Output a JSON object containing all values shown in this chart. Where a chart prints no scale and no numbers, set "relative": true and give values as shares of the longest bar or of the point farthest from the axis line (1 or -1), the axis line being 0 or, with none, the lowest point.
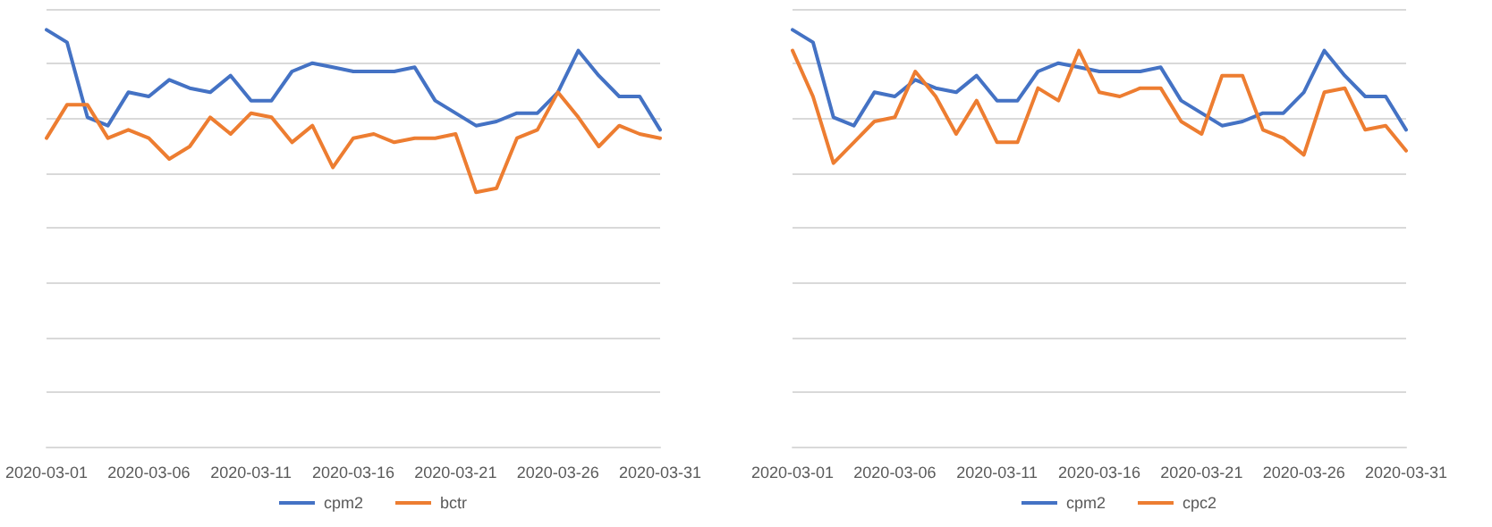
{
  "chart_data": [
    {
      "type": "line",
      "relative": true,
      "grid": "y",
      "legend": "bottom",
      "marker": "none",
      "line_style": "solid",
      "categories": [
        "2020-03-01",
        null,
        null,
        null,
        null,
        "2020-03-06",
        null,
        null,
        null,
        null,
        "2020-03-11",
        null,
        null,
        null,
        null,
        "2020-03-16",
        null,
        null,
        null,
        null,
        "2020-03-21",
        null,
        null,
        null,
        null,
        "2020-03-26",
        null,
        null,
        null,
        null,
        "2020-03-31"
      ],
      "series": [
        {
          "name": "cpm2",
          "color": "#4472c4",
          "values": [
            1.0,
            0.97,
            0.79,
            0.77,
            0.85,
            0.84,
            0.88,
            0.86,
            0.85,
            0.89,
            0.83,
            0.83,
            0.9,
            0.92,
            0.91,
            0.9,
            0.9,
            0.9,
            0.91,
            0.83,
            0.8,
            0.77,
            0.78,
            0.8,
            0.8,
            0.85,
            0.95,
            0.89,
            0.84,
            0.84,
            0.76
          ]
        },
        {
          "name": "bctr",
          "color": "#ed7d31",
          "values": [
            0.74,
            0.82,
            0.82,
            0.74,
            0.76,
            0.74,
            0.69,
            0.72,
            0.79,
            0.75,
            0.8,
            0.79,
            0.73,
            0.77,
            0.67,
            0.74,
            0.75,
            0.73,
            0.74,
            0.74,
            0.75,
            0.61,
            0.62,
            0.74,
            0.76,
            0.85,
            0.79,
            0.72,
            0.77,
            0.75,
            0.74
          ]
        }
      ]
    },
    {
      "type": "line",
      "relative": true,
      "grid": "y",
      "legend": "bottom",
      "marker": "none",
      "line_style": "solid",
      "categories": [
        "2020-03-01",
        null,
        null,
        null,
        null,
        "2020-03-06",
        null,
        null,
        null,
        null,
        "2020-03-11",
        null,
        null,
        null,
        null,
        "2020-03-16",
        null,
        null,
        null,
        null,
        "2020-03-21",
        null,
        null,
        null,
        null,
        "2020-03-26",
        null,
        null,
        null,
        null,
        "2020-03-31"
      ],
      "series": [
        {
          "name": "cpm2",
          "color": "#4472c4",
          "values": [
            1.0,
            0.97,
            0.79,
            0.77,
            0.85,
            0.84,
            0.88,
            0.86,
            0.85,
            0.89,
            0.83,
            0.83,
            0.9,
            0.92,
            0.91,
            0.9,
            0.9,
            0.9,
            0.91,
            0.83,
            0.8,
            0.77,
            0.78,
            0.8,
            0.8,
            0.85,
            0.95,
            0.89,
            0.84,
            0.84,
            0.76
          ]
        },
        {
          "name": "cpc2",
          "color": "#ed7d31",
          "values": [
            0.95,
            0.84,
            0.68,
            0.73,
            0.78,
            0.79,
            0.9,
            0.84,
            0.75,
            0.83,
            0.73,
            0.73,
            0.86,
            0.83,
            0.95,
            0.85,
            0.84,
            0.86,
            0.86,
            0.78,
            0.75,
            0.89,
            0.89,
            0.76,
            0.74,
            0.7,
            0.85,
            0.86,
            0.76,
            0.77,
            0.71
          ]
        }
      ]
    }
  ]
}
